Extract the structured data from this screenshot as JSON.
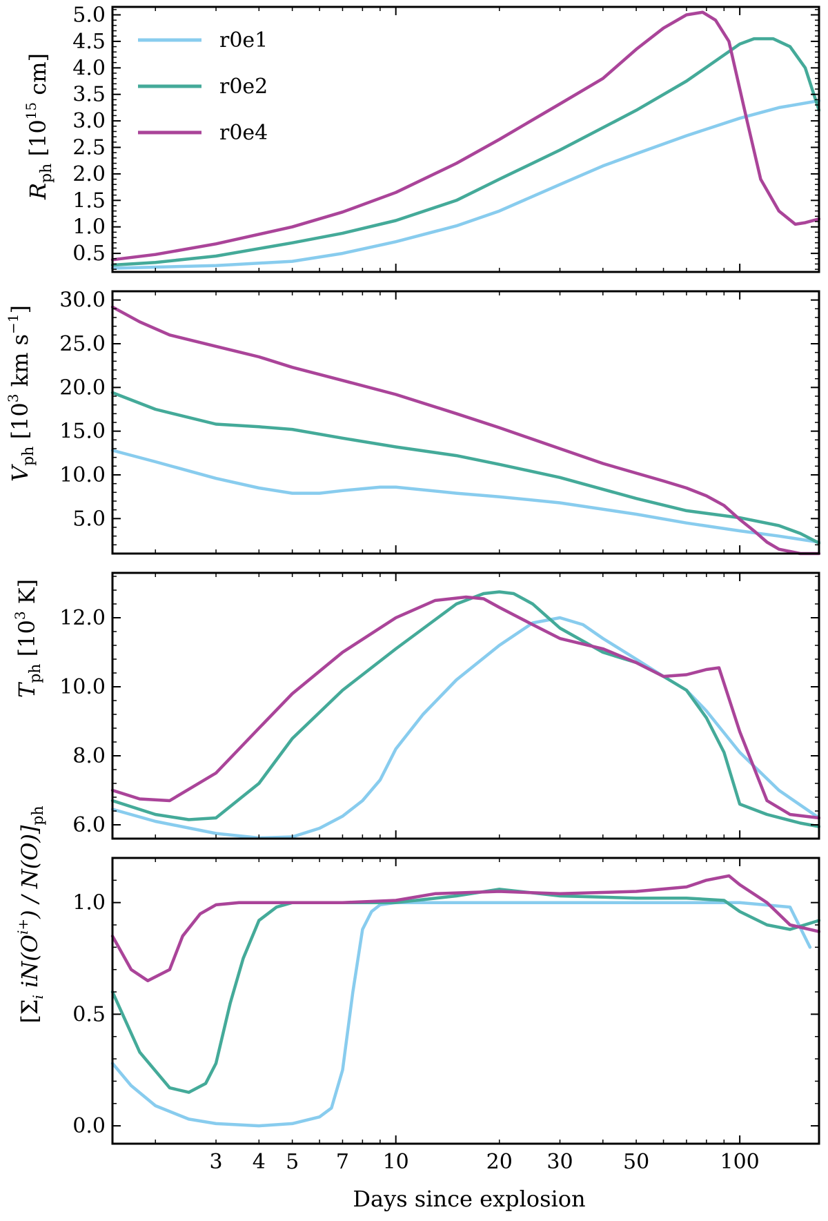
{
  "chart_data": {
    "type": "line",
    "xlabel": "Days since explosion",
    "x_scale": "log",
    "xlim": [
      1.5,
      170
    ],
    "x_ticks": [
      3,
      4,
      5,
      7,
      10,
      20,
      30,
      50,
      100
    ],
    "x_tick_labels": [
      "3",
      "4",
      "5",
      "7",
      "10",
      "20",
      "30",
      "50",
      "100"
    ],
    "legend": {
      "location": "top-left",
      "entries": [
        {
          "name": "r0e1",
          "color": "#88ccee"
        },
        {
          "name": "r0e2",
          "color": "#44aa99"
        },
        {
          "name": "r0e4",
          "color": "#aa4499"
        }
      ]
    },
    "panels": [
      {
        "id": "radius",
        "ylabel_main": "R",
        "ylabel_sub": "ph",
        "ylabel_unit_pre": " [10",
        "ylabel_unit_sup": "15",
        "ylabel_unit_post": " cm]",
        "ylim": [
          0.15,
          5.15
        ],
        "y_ticks": [
          0.5,
          1.0,
          1.5,
          2.0,
          2.5,
          3.0,
          3.5,
          4.0,
          4.5,
          5.0
        ],
        "y_tick_labels": [
          "0.5",
          "1.0",
          "1.5",
          "2.0",
          "2.5",
          "3.0",
          "3.5",
          "4.0",
          "4.5",
          "5.0"
        ],
        "series": [
          {
            "name": "r0e1",
            "x": [
              1.5,
              3,
              5,
              7,
              10,
              15,
              20,
              30,
              40,
              50,
              70,
              100,
              130,
              170
            ],
            "y": [
              0.22,
              0.27,
              0.35,
              0.5,
              0.72,
              1.02,
              1.3,
              1.8,
              2.15,
              2.38,
              2.72,
              3.05,
              3.25,
              3.38
            ]
          },
          {
            "name": "r0e2",
            "x": [
              1.5,
              2,
              3,
              5,
              7,
              10,
              15,
              20,
              30,
              50,
              70,
              100,
              110,
              125,
              140,
              155,
              170
            ],
            "y": [
              0.28,
              0.33,
              0.45,
              0.7,
              0.88,
              1.12,
              1.5,
              1.9,
              2.45,
              3.2,
              3.75,
              4.45,
              4.55,
              4.55,
              4.4,
              4.0,
              3.2
            ]
          },
          {
            "name": "r0e4",
            "x": [
              1.5,
              2,
              3,
              5,
              7,
              10,
              15,
              20,
              30,
              40,
              50,
              60,
              70,
              78,
              85,
              93,
              105,
              115,
              130,
              145,
              155,
              170
            ],
            "y": [
              0.38,
              0.48,
              0.68,
              1.0,
              1.28,
              1.65,
              2.2,
              2.65,
              3.32,
              3.8,
              4.35,
              4.75,
              5.0,
              5.05,
              4.9,
              4.5,
              3.0,
              1.9,
              1.3,
              1.05,
              1.08,
              1.15
            ]
          }
        ]
      },
      {
        "id": "velocity",
        "ylabel_main": "V",
        "ylabel_sub": "ph",
        "ylabel_unit_pre": " [10",
        "ylabel_unit_sup": "3",
        "ylabel_unit_post": " km s",
        "ylabel_unit_sup2": "−1",
        "ylabel_unit_end": "]",
        "ylim": [
          1.0,
          31.0
        ],
        "y_ticks": [
          5.0,
          10.0,
          15.0,
          20.0,
          25.0,
          30.0
        ],
        "y_tick_labels": [
          "5.0",
          "10.0",
          "15.0",
          "20.0",
          "25.0",
          "30.0"
        ],
        "series": [
          {
            "name": "r0e1",
            "x": [
              1.5,
              2,
              3,
              4,
              5,
              6,
              7,
              9,
              10,
              15,
              20,
              30,
              50,
              70,
              100,
              130,
              170
            ],
            "y": [
              12.8,
              11.5,
              9.6,
              8.5,
              7.9,
              7.9,
              8.2,
              8.6,
              8.6,
              7.9,
              7.5,
              6.8,
              5.5,
              4.5,
              3.6,
              3.0,
              2.3
            ]
          },
          {
            "name": "r0e2",
            "x": [
              1.5,
              2,
              3,
              4,
              5,
              7,
              10,
              15,
              20,
              30,
              50,
              70,
              100,
              130,
              150,
              170
            ],
            "y": [
              19.4,
              17.5,
              15.8,
              15.5,
              15.2,
              14.2,
              13.2,
              12.2,
              11.2,
              9.7,
              7.3,
              5.9,
              5.1,
              4.2,
              3.3,
              2.2
            ]
          },
          {
            "name": "r0e4",
            "x": [
              1.5,
              1.8,
              2.2,
              3,
              4,
              5,
              7,
              10,
              15,
              20,
              30,
              40,
              50,
              60,
              70,
              80,
              90,
              100,
              110,
              120,
              130,
              150,
              170
            ],
            "y": [
              29.2,
              27.5,
              26.0,
              24.7,
              23.5,
              22.3,
              20.8,
              19.2,
              17.0,
              15.4,
              13.0,
              11.3,
              10.2,
              9.3,
              8.5,
              7.6,
              6.5,
              4.9,
              3.6,
              2.3,
              1.5,
              1.0,
              1.0
            ]
          }
        ]
      },
      {
        "id": "temperature",
        "ylabel_main": "T",
        "ylabel_sub": "ph",
        "ylabel_unit_pre": " [10",
        "ylabel_unit_sup": "3",
        "ylabel_unit_post": " K]",
        "ylim": [
          5.6,
          13.3
        ],
        "y_ticks": [
          6.0,
          8.0,
          10.0,
          12.0
        ],
        "y_tick_labels": [
          "6.0",
          "8.0",
          "10.0",
          "12.0"
        ],
        "series": [
          {
            "name": "r0e1",
            "x": [
              1.5,
              2,
              3,
              4,
              5,
              6,
              7,
              8,
              9,
              10,
              12,
              15,
              20,
              25,
              30,
              35,
              40,
              50,
              60,
              70,
              80,
              100,
              130,
              170
            ],
            "y": [
              6.45,
              6.1,
              5.75,
              5.62,
              5.65,
              5.9,
              6.25,
              6.7,
              7.3,
              8.2,
              9.2,
              10.2,
              11.2,
              11.85,
              12.0,
              11.8,
              11.4,
              10.8,
              10.3,
              9.9,
              9.3,
              8.1,
              7.0,
              6.2
            ]
          },
          {
            "name": "r0e2",
            "x": [
              1.5,
              2,
              2.5,
              3,
              4,
              5,
              7,
              10,
              15,
              18,
              20,
              22,
              25,
              30,
              40,
              50,
              60,
              70,
              80,
              90,
              100,
              120,
              150,
              170
            ],
            "y": [
              6.7,
              6.3,
              6.15,
              6.2,
              7.2,
              8.5,
              9.9,
              11.1,
              12.4,
              12.7,
              12.75,
              12.7,
              12.4,
              11.7,
              11.0,
              10.7,
              10.3,
              9.9,
              9.1,
              8.1,
              6.6,
              6.3,
              6.05,
              5.95
            ]
          },
          {
            "name": "r0e4",
            "x": [
              1.5,
              1.8,
              2.2,
              3,
              4,
              5,
              7,
              10,
              13,
              16,
              18,
              20,
              25,
              30,
              40,
              50,
              60,
              70,
              80,
              87,
              100,
              120,
              140,
              170
            ],
            "y": [
              7.0,
              6.75,
              6.7,
              7.5,
              8.8,
              9.8,
              11.0,
              12.0,
              12.5,
              12.6,
              12.55,
              12.3,
              11.8,
              11.4,
              11.1,
              10.7,
              10.3,
              10.35,
              10.5,
              10.55,
              8.7,
              6.7,
              6.3,
              6.2
            ]
          }
        ]
      },
      {
        "id": "ionization",
        "ylabel_text": "[Σ",
        "ylabel_sub_i": "i",
        "ylabel_mid": " iN(O",
        "ylabel_sup": "i+",
        "ylabel_tail": ") / N(O)]",
        "ylabel_sub_end": "ph",
        "ylim": [
          -0.08,
          1.2
        ],
        "y_ticks": [
          0.0,
          0.5,
          1.0
        ],
        "y_tick_labels": [
          "0.0",
          "0.5",
          "1.0"
        ],
        "series": [
          {
            "name": "r0e1",
            "x": [
              1.5,
              1.7,
              2,
              2.5,
              3,
              4,
              5,
              6,
              6.5,
              7,
              7.5,
              8,
              8.5,
              9,
              10,
              20,
              50,
              100,
              140,
              160
            ],
            "y": [
              0.28,
              0.18,
              0.09,
              0.03,
              0.01,
              0.0,
              0.01,
              0.04,
              0.08,
              0.25,
              0.6,
              0.88,
              0.96,
              0.99,
              1.0,
              1.0,
              1.0,
              1.0,
              0.98,
              0.8
            ]
          },
          {
            "name": "r0e2",
            "x": [
              1.5,
              1.8,
              2.2,
              2.5,
              2.8,
              3,
              3.3,
              3.6,
              4,
              4.5,
              5,
              7,
              10,
              15,
              20,
              30,
              50,
              70,
              90,
              100,
              120,
              140,
              170
            ],
            "y": [
              0.6,
              0.33,
              0.17,
              0.15,
              0.19,
              0.28,
              0.55,
              0.75,
              0.92,
              0.98,
              1.0,
              1.0,
              1.0,
              1.03,
              1.06,
              1.03,
              1.02,
              1.02,
              1.01,
              0.96,
              0.9,
              0.88,
              0.92
            ]
          },
          {
            "name": "r0e4",
            "x": [
              1.5,
              1.7,
              1.9,
              2.2,
              2.4,
              2.7,
              3,
              3.5,
              4,
              5,
              7,
              10,
              13,
              20,
              30,
              50,
              70,
              80,
              93,
              100,
              120,
              140,
              170
            ],
            "y": [
              0.85,
              0.7,
              0.65,
              0.7,
              0.85,
              0.95,
              0.99,
              1.0,
              1.0,
              1.0,
              1.0,
              1.01,
              1.04,
              1.05,
              1.04,
              1.05,
              1.07,
              1.1,
              1.12,
              1.08,
              1.0,
              0.9,
              0.87
            ]
          }
        ]
      }
    ]
  }
}
